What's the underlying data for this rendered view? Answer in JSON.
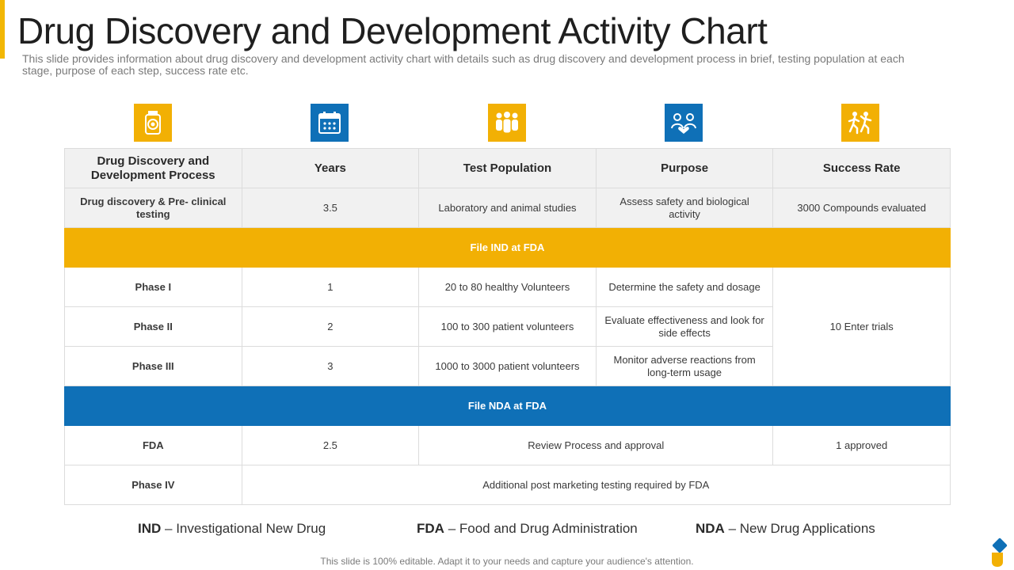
{
  "page": {
    "title": "Drug Discovery and Development Activity Chart",
    "subtitle": "This slide provides information about drug discovery and development activity chart with details such as drug discovery and development process in brief, testing population at each stage, purpose of each step, success rate etc."
  },
  "colors": {
    "yellow": "#f2b004",
    "blue": "#0f70b7"
  },
  "icons": [
    "capsule-bottle-icon",
    "calendar-icon",
    "people-group-icon",
    "team-heart-icon",
    "running-people-icon"
  ],
  "table": {
    "headers": [
      "Drug Discovery and Development Process",
      "Years",
      "Test Population",
      "Purpose",
      "Success Rate"
    ],
    "discovery": {
      "stage": "Drug discovery & Pre- clinical testing",
      "years": "3.5",
      "population": "Laboratory and animal studies",
      "purpose": "Assess safety and biological activity",
      "success": "3000 Compounds evaluated"
    },
    "band_ind": "File IND at FDA",
    "phase1": {
      "stage": "Phase I",
      "years": "1",
      "population": "20 to 80 healthy Volunteers",
      "purpose": "Determine the safety and dosage"
    },
    "phase2": {
      "stage": "Phase II",
      "years": "2",
      "population": "100 to 300 patient volunteers",
      "purpose": "Evaluate effectiveness and look for side effects"
    },
    "phase3": {
      "stage": "Phase III",
      "years": "3",
      "population": "1000 to 3000 patient volunteers",
      "purpose": "Monitor adverse reactions from long-term usage"
    },
    "trials_success": "10 Enter trials",
    "band_nda": "File NDA at FDA",
    "fda": {
      "stage": "FDA",
      "years": "2.5",
      "purpose": "Review Process and approval",
      "success": "1 approved"
    },
    "phase4": {
      "stage": "Phase IV",
      "note": "Additional post marketing testing required by FDA"
    }
  },
  "legend": {
    "ind": {
      "abbr": "IND",
      "text": "– Investigational  New Drug"
    },
    "fda": {
      "abbr": "FDA",
      "text": "– Food and Drug Administration"
    },
    "nda": {
      "abbr": "NDA",
      "text": "– New Drug Applications"
    }
  },
  "footer": "This slide is 100% editable. Adapt it to your needs and capture your audience's attention."
}
